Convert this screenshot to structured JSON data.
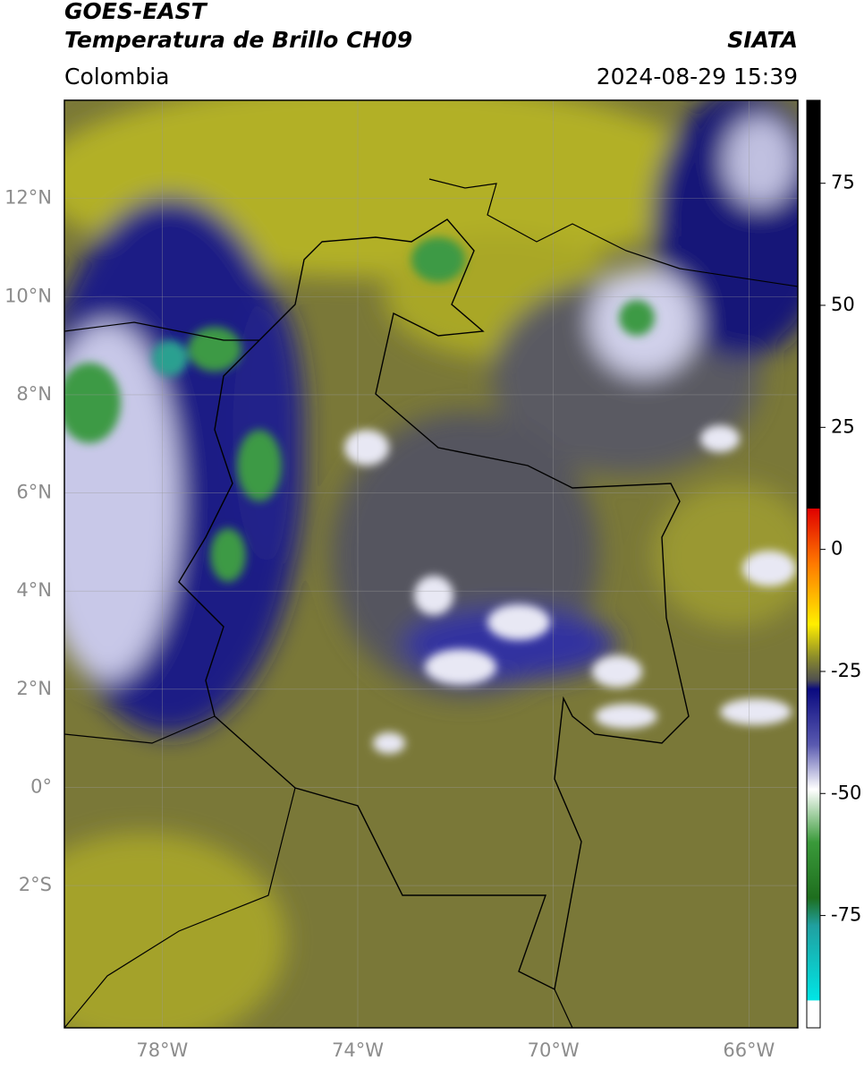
{
  "header": {
    "title": "GOES-EAST",
    "subtitle": "Temperatura de Brillo CH09",
    "region": "Colombia",
    "source": "SIATA",
    "timestamp": "2024-08-29 15:39"
  },
  "map": {
    "latlim": [
      -4.9,
      14
    ],
    "lonlim": [
      -80,
      -65
    ],
    "lat_ticks": [
      {
        "value": 12,
        "label": "12°N"
      },
      {
        "value": 10,
        "label": "10°N"
      },
      {
        "value": 8,
        "label": "8°N"
      },
      {
        "value": 6,
        "label": "6°N"
      },
      {
        "value": 4,
        "label": "4°N"
      },
      {
        "value": 2,
        "label": "2°N"
      },
      {
        "value": 0,
        "label": "0°"
      },
      {
        "value": -2,
        "label": "2°S"
      }
    ],
    "lon_ticks": [
      {
        "value": -78,
        "label": "78°W"
      },
      {
        "value": -74,
        "label": "74°W"
      },
      {
        "value": -70,
        "label": "70°W"
      },
      {
        "value": -66,
        "label": "66°W"
      }
    ]
  },
  "colorbar": {
    "lim": [
      -98,
      92
    ],
    "ticks": [
      75,
      50,
      25,
      0,
      -25,
      -50,
      -75
    ]
  }
}
